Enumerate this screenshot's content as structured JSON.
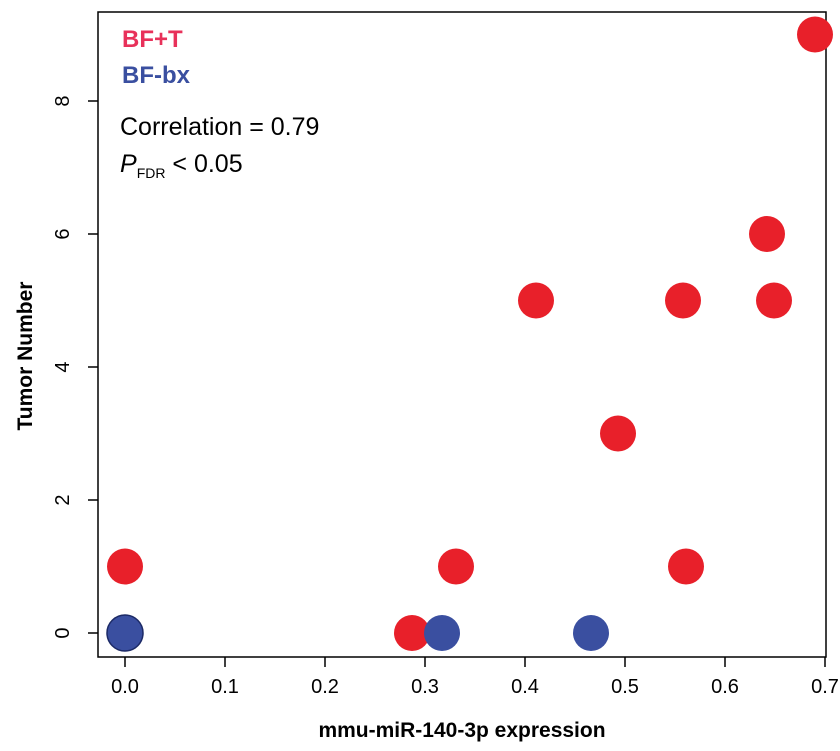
{
  "chart_data": {
    "type": "scatter",
    "xlabel": "mmu-miR-140-3p expression",
    "ylabel": "Tumor Number",
    "xlim": [
      0.0,
      0.7
    ],
    "ylim": [
      0,
      9
    ],
    "xticks": [
      "0.0",
      "0.1",
      "0.2",
      "0.3",
      "0.4",
      "0.5",
      "0.6",
      "0.7"
    ],
    "yticks": [
      "0",
      "2",
      "4",
      "6",
      "8"
    ],
    "grid": false,
    "legend_position": "top-left",
    "series": [
      {
        "name": "BF+T",
        "color": "#e8202a",
        "legend_color": "#e8315a",
        "points": [
          {
            "x": 0.0,
            "y": 1
          },
          {
            "x": 0.287,
            "y": 0
          },
          {
            "x": 0.331,
            "y": 1
          },
          {
            "x": 0.411,
            "y": 5
          },
          {
            "x": 0.493,
            "y": 3
          },
          {
            "x": 0.558,
            "y": 5
          },
          {
            "x": 0.561,
            "y": 1
          },
          {
            "x": 0.642,
            "y": 6
          },
          {
            "x": 0.649,
            "y": 5
          },
          {
            "x": 0.69,
            "y": 9
          }
        ]
      },
      {
        "name": "BF-bx",
        "color": "#3a4fa0",
        "legend_color": "#3a4fa0",
        "points": [
          {
            "x": 0.0,
            "y": 0
          },
          {
            "x": 0.317,
            "y": 0
          },
          {
            "x": 0.466,
            "y": 0
          }
        ]
      }
    ],
    "annotations": {
      "correlation": "Correlation = 0.79",
      "p_symbol": "P",
      "p_subscript": "FDR",
      "p_value": " < 0.05"
    }
  }
}
